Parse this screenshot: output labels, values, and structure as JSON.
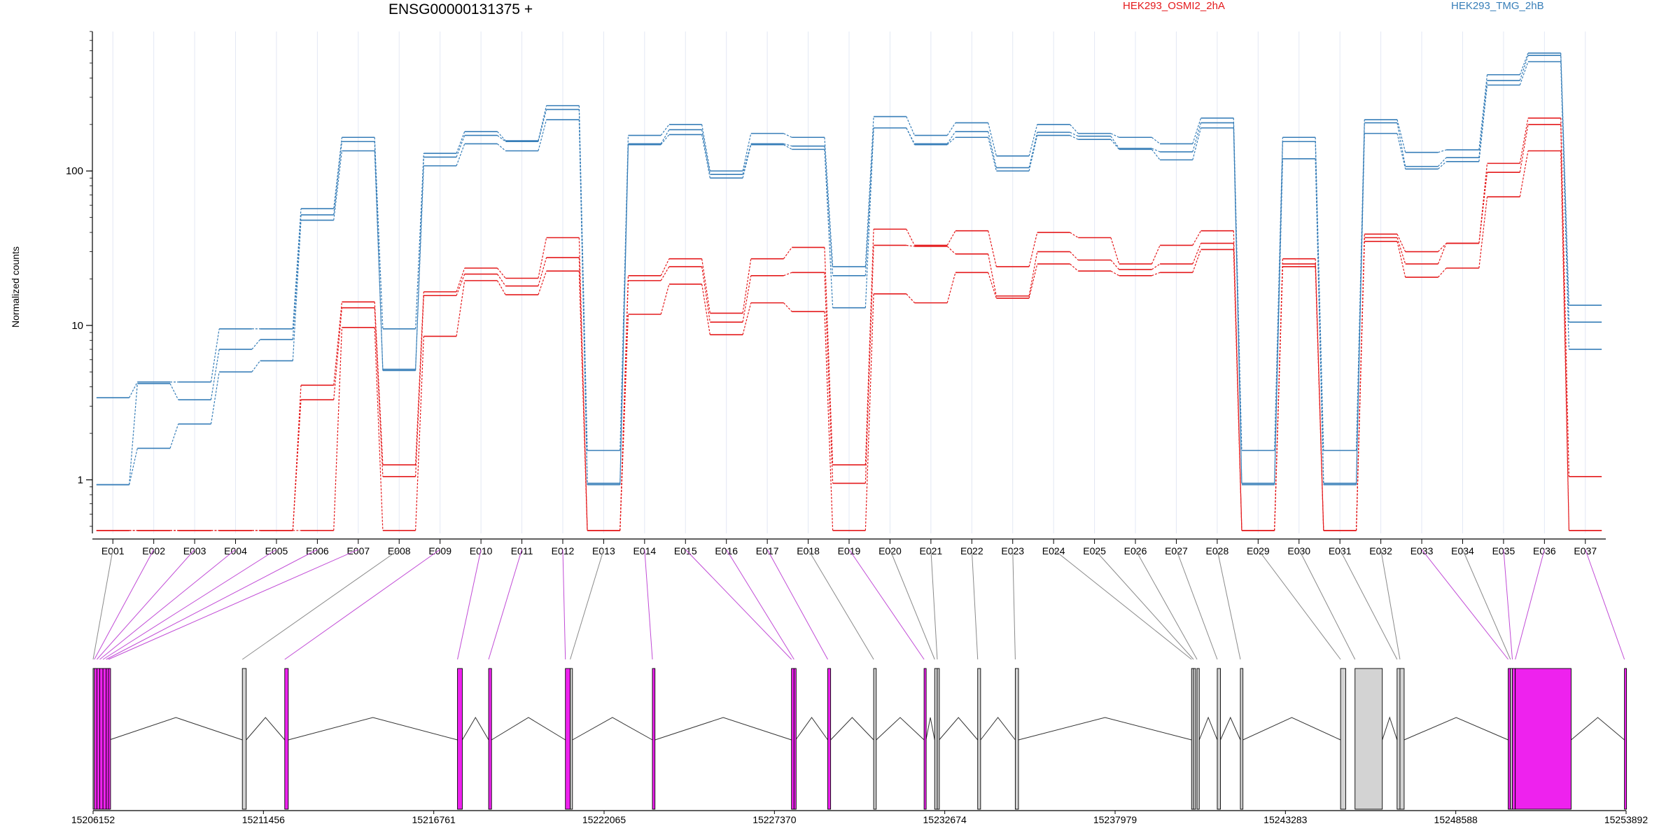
{
  "chart_data": {
    "type": "line",
    "title": "ENSG00000131375 +",
    "ylabel": "Normalized counts",
    "xlabel": "",
    "yscale": "log",
    "yticks": [
      1,
      10,
      100
    ],
    "ylim": [
      0.45,
      800
    ],
    "legend_placement": "top",
    "grid": "faint vertical lines per exon",
    "categories": [
      "E001",
      "E002",
      "E003",
      "E004",
      "E005",
      "E006",
      "E007",
      "E008",
      "E009",
      "E010",
      "E011",
      "E012",
      "E013",
      "E014",
      "E015",
      "E016",
      "E017",
      "E018",
      "E019",
      "E020",
      "E021",
      "E022",
      "E023",
      "E024",
      "E025",
      "E026",
      "E027",
      "E028",
      "E029",
      "E030",
      "E031",
      "E032",
      "E033",
      "E034",
      "E035",
      "E036",
      "E037"
    ],
    "series": [
      {
        "name": "HEK293_OSMI2_2hA",
        "color": "#e41a1c",
        "values": [
          0.47,
          0.47,
          0.47,
          0.47,
          0.47,
          4.1,
          14.2,
          1.25,
          16.5,
          23.5,
          20.2,
          37,
          0.47,
          21,
          27,
          12,
          27,
          32,
          1.25,
          42,
          33,
          41,
          24,
          40,
          37,
          25,
          33,
          41,
          0.47,
          27,
          0.47,
          39,
          30,
          34,
          112,
          220,
          1.05
        ]
      },
      {
        "color": "#e41a1c",
        "values": [
          0.47,
          0.47,
          0.47,
          0.47,
          0.47,
          3.3,
          13,
          1.05,
          15.6,
          21.5,
          18,
          27.5,
          0.47,
          19.5,
          24,
          10.5,
          21,
          22,
          0.95,
          33,
          32.5,
          29,
          15.5,
          30,
          26.5,
          23,
          25,
          34,
          0.47,
          25,
          0.47,
          37,
          25,
          34,
          98,
          200,
          0.47
        ]
      },
      {
        "color": "#e41a1c",
        "values": [
          0.47,
          0.47,
          0.47,
          0.47,
          0.47,
          0.47,
          9.7,
          0.47,
          8.5,
          19.5,
          15.8,
          22.5,
          0.47,
          11.8,
          18.5,
          8.7,
          14,
          12.3,
          0.47,
          16,
          14,
          22,
          15,
          25,
          22.5,
          21,
          22,
          31,
          0.47,
          24,
          0.47,
          35,
          20.5,
          23.5,
          68,
          135,
          0.47
        ]
      },
      {
        "name": "HEK293_TMG_2hB",
        "color": "#377eb8",
        "values": [
          3.4,
          4.3,
          4.3,
          9.5,
          9.5,
          57,
          165,
          9.5,
          130,
          180,
          157,
          265,
          1.55,
          170,
          200,
          100,
          175,
          165,
          24,
          225,
          170,
          205,
          125,
          200,
          175,
          165,
          150,
          220,
          1.55,
          165,
          1.55,
          215,
          132,
          137,
          420,
          580,
          13.5
        ]
      },
      {
        "color": "#377eb8",
        "values": [
          0.93,
          4.2,
          3.3,
          7,
          8.1,
          52,
          155,
          5.1,
          123,
          170,
          155,
          250,
          0.95,
          150,
          185,
          95,
          150,
          145,
          21,
          190,
          150,
          180,
          105,
          178,
          168,
          140,
          133,
          205,
          0.95,
          155,
          0.95,
          205,
          107,
          122,
          385,
          560,
          10.5
        ]
      },
      {
        "color": "#377eb8",
        "values": [
          0.93,
          1.6,
          2.3,
          5,
          5.9,
          48,
          135,
          5.2,
          108,
          150,
          135,
          215,
          0.93,
          148,
          172,
          90,
          148,
          138,
          13,
          190,
          148,
          165,
          100,
          170,
          160,
          138,
          118,
          190,
          0.93,
          120,
          0.93,
          175,
          103,
          115,
          360,
          510,
          7
        ]
      }
    ]
  },
  "gene_model": {
    "coordinate_labels": [
      "15206152",
      "15211456",
      "15216761",
      "15222065",
      "15227370",
      "15232674",
      "15237979",
      "15243283",
      "15248588",
      "15253892"
    ],
    "highlight_color": "#ee22ee",
    "exons": [
      {
        "id": "E001",
        "start": 15206152,
        "end": 15206190,
        "highlight": false
      },
      {
        "id": "E002",
        "start": 15206190,
        "end": 15206270,
        "highlight": true
      },
      {
        "id": "E003",
        "start": 15206270,
        "end": 15206360,
        "highlight": true
      },
      {
        "id": "E004",
        "start": 15206360,
        "end": 15206460,
        "highlight": true
      },
      {
        "id": "E005",
        "start": 15206460,
        "end": 15206560,
        "highlight": true
      },
      {
        "id": "E006",
        "start": 15206560,
        "end": 15206660,
        "highlight": true
      },
      {
        "id": "E007",
        "start": 15206660,
        "end": 15206630,
        "highlight": true
      },
      {
        "id": "E008",
        "start": 15210800,
        "end": 15210920,
        "highlight": false
      },
      {
        "id": "E009",
        "start": 15212120,
        "end": 15212230,
        "highlight": true
      },
      {
        "id": "E010",
        "start": 15217500,
        "end": 15217650,
        "highlight": true
      },
      {
        "id": "E011",
        "start": 15218470,
        "end": 15218560,
        "highlight": true
      },
      {
        "id": "E012",
        "start": 15220860,
        "end": 15221010,
        "highlight": true
      },
      {
        "id": "E013",
        "start": 15221010,
        "end": 15221080,
        "highlight": false
      },
      {
        "id": "E014",
        "start": 15223570,
        "end": 15223650,
        "highlight": true
      },
      {
        "id": "E015",
        "start": 15227900,
        "end": 15227980,
        "highlight": true
      },
      {
        "id": "E016",
        "start": 15227980,
        "end": 15228030,
        "highlight": true
      },
      {
        "id": "E017",
        "start": 15229030,
        "end": 15229120,
        "highlight": true
      },
      {
        "id": "E018",
        "start": 15230460,
        "end": 15230540,
        "highlight": false
      },
      {
        "id": "E019",
        "start": 15232030,
        "end": 15232090,
        "highlight": true
      },
      {
        "id": "E020",
        "start": 15232360,
        "end": 15232440,
        "highlight": false
      },
      {
        "id": "E021",
        "start": 15232440,
        "end": 15232500,
        "highlight": false
      },
      {
        "id": "E022",
        "start": 15233700,
        "end": 15233790,
        "highlight": false
      },
      {
        "id": "E023",
        "start": 15234870,
        "end": 15234970,
        "highlight": false
      },
      {
        "id": "E024",
        "start": 15240360,
        "end": 15240420,
        "highlight": false
      },
      {
        "id": "E025",
        "start": 15240420,
        "end": 15240470,
        "highlight": false
      },
      {
        "id": "E026",
        "start": 15240530,
        "end": 15240600,
        "highlight": false
      },
      {
        "id": "E027",
        "start": 15241160,
        "end": 15241260,
        "highlight": false
      },
      {
        "id": "E028",
        "start": 15241880,
        "end": 15241960,
        "highlight": false
      },
      {
        "id": "E029",
        "start": 15245000,
        "end": 15245160,
        "highlight": false
      },
      {
        "id": "E030",
        "start": 15245450,
        "end": 15246300,
        "highlight": false
      },
      {
        "id": "E031",
        "start": 15246760,
        "end": 15246850,
        "highlight": false
      },
      {
        "id": "E032",
        "start": 15246850,
        "end": 15246980,
        "highlight": false
      },
      {
        "id": "E033",
        "start": 15250220,
        "end": 15250290,
        "highlight": true
      },
      {
        "id": "E034",
        "start": 15250290,
        "end": 15250350,
        "highlight": false
      },
      {
        "id": "E035",
        "start": 15250350,
        "end": 15250440,
        "highlight": true
      },
      {
        "id": "E036",
        "start": 15250440,
        "end": 15252180,
        "highlight": true
      },
      {
        "id": "E037",
        "start": 15253840,
        "end": 15253892,
        "highlight": true
      }
    ],
    "introns": [
      [
        15206660,
        15210800
      ],
      [
        15210920,
        15212120
      ],
      [
        15212230,
        15217500
      ],
      [
        15217650,
        15218470
      ],
      [
        15218560,
        15220860
      ],
      [
        15221080,
        15223570
      ],
      [
        15223650,
        15227900
      ],
      [
        15228030,
        15229030
      ],
      [
        15229120,
        15230460
      ],
      [
        15230540,
        15232030
      ],
      [
        15232090,
        15232360
      ],
      [
        15232500,
        15233700
      ],
      [
        15233790,
        15234870
      ],
      [
        15234970,
        15240360
      ],
      [
        15240600,
        15241160
      ],
      [
        15241260,
        15241880
      ],
      [
        15241960,
        15245000
      ],
      [
        15246300,
        15246760
      ],
      [
        15246980,
        15250220
      ],
      [
        15252180,
        15253840
      ]
    ]
  }
}
